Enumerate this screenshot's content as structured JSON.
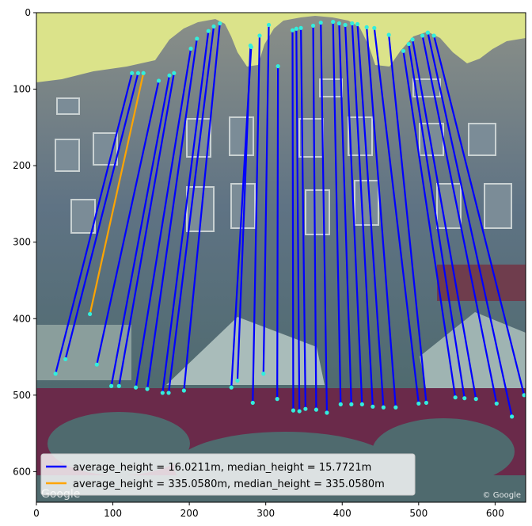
{
  "chart_data": {
    "type": "line",
    "title": "",
    "xlabel": "",
    "ylabel": "",
    "xlim": [
      0,
      640
    ],
    "ylim": [
      640,
      0
    ],
    "x_ticks": [
      0,
      100,
      200,
      300,
      400,
      500,
      600
    ],
    "y_ticks": [
      0,
      100,
      200,
      300,
      400,
      500,
      600
    ],
    "grid": false,
    "legend_position": "lower-left",
    "background": "street-level photo of building facades with a tinted segmentation overlay",
    "watermarks": [
      "Google",
      "© Google"
    ],
    "colors": {
      "blue": "#0000ff",
      "orange": "#ffa500",
      "endpoint": "#33eedd",
      "sky": "#dbe38a",
      "facade": "#5d7486",
      "ground": "#6a2a4a"
    },
    "series": [
      {
        "name": "average_height = 16.0211m, median_height = 15.7721m",
        "color": "#0000ff",
        "segments": [
          [
            [
              25,
              472
            ],
            [
              125,
              79
            ]
          ],
          [
            [
              38,
              453
            ],
            [
              133,
              79
            ]
          ],
          [
            [
              79,
              460
            ],
            [
              160,
              89
            ]
          ],
          [
            [
              98,
              488
            ],
            [
              174,
              82
            ]
          ],
          [
            [
              108,
              488
            ],
            [
              180,
              79
            ]
          ],
          [
            [
              130,
              490
            ],
            [
              202,
              47
            ]
          ],
          [
            [
              145,
              492
            ],
            [
              210,
              34
            ]
          ],
          [
            [
              165,
              497
            ],
            [
              225,
              24
            ]
          ],
          [
            [
              173,
              497
            ],
            [
              232,
              18
            ]
          ],
          [
            [
              193,
              494
            ],
            [
              240,
              14
            ]
          ],
          [
            [
              255,
              490
            ],
            [
              281,
              45
            ]
          ],
          [
            [
              263,
              481
            ],
            [
              280,
              43
            ]
          ],
          [
            [
              283,
              510
            ],
            [
              292,
              30
            ]
          ],
          [
            [
              297,
              472
            ],
            [
              304,
              16
            ]
          ],
          [
            [
              315,
              505
            ],
            [
              316,
              70
            ]
          ],
          [
            [
              336,
              520
            ],
            [
              335,
              23
            ]
          ],
          [
            [
              344,
              521
            ],
            [
              340,
              21
            ]
          ],
          [
            [
              352,
              518
            ],
            [
              346,
              20
            ]
          ],
          [
            [
              366,
              519
            ],
            [
              362,
              17
            ]
          ],
          [
            [
              380,
              523
            ],
            [
              372,
              13
            ]
          ],
          [
            [
              398,
              512
            ],
            [
              388,
              12
            ]
          ],
          [
            [
              412,
              512
            ],
            [
              396,
              14
            ]
          ],
          [
            [
              426,
              512
            ],
            [
              404,
              16
            ]
          ],
          [
            [
              440,
              515
            ],
            [
              413,
              14
            ]
          ],
          [
            [
              454,
              516
            ],
            [
              420,
              15
            ]
          ],
          [
            [
              470,
              516
            ],
            [
              432,
              19
            ]
          ],
          [
            [
              500,
              511
            ],
            [
              442,
              20
            ]
          ],
          [
            [
              510,
              510
            ],
            [
              461,
              29
            ]
          ],
          [
            [
              548,
              503
            ],
            [
              480,
              50
            ]
          ],
          [
            [
              560,
              504
            ],
            [
              487,
              41
            ]
          ],
          [
            [
              575,
              505
            ],
            [
              492,
              35
            ]
          ],
          [
            [
              602,
              511
            ],
            [
              505,
              30
            ]
          ],
          [
            [
              622,
              528
            ],
            [
              512,
              26
            ]
          ],
          [
            [
              638,
              500
            ],
            [
              520,
              30
            ]
          ]
        ]
      },
      {
        "name": "average_height = 335.0580m, median_height = 335.0580m",
        "color": "#ffa500",
        "segments": [
          [
            [
              70,
              394
            ],
            [
              140,
              79
            ]
          ]
        ]
      }
    ]
  }
}
